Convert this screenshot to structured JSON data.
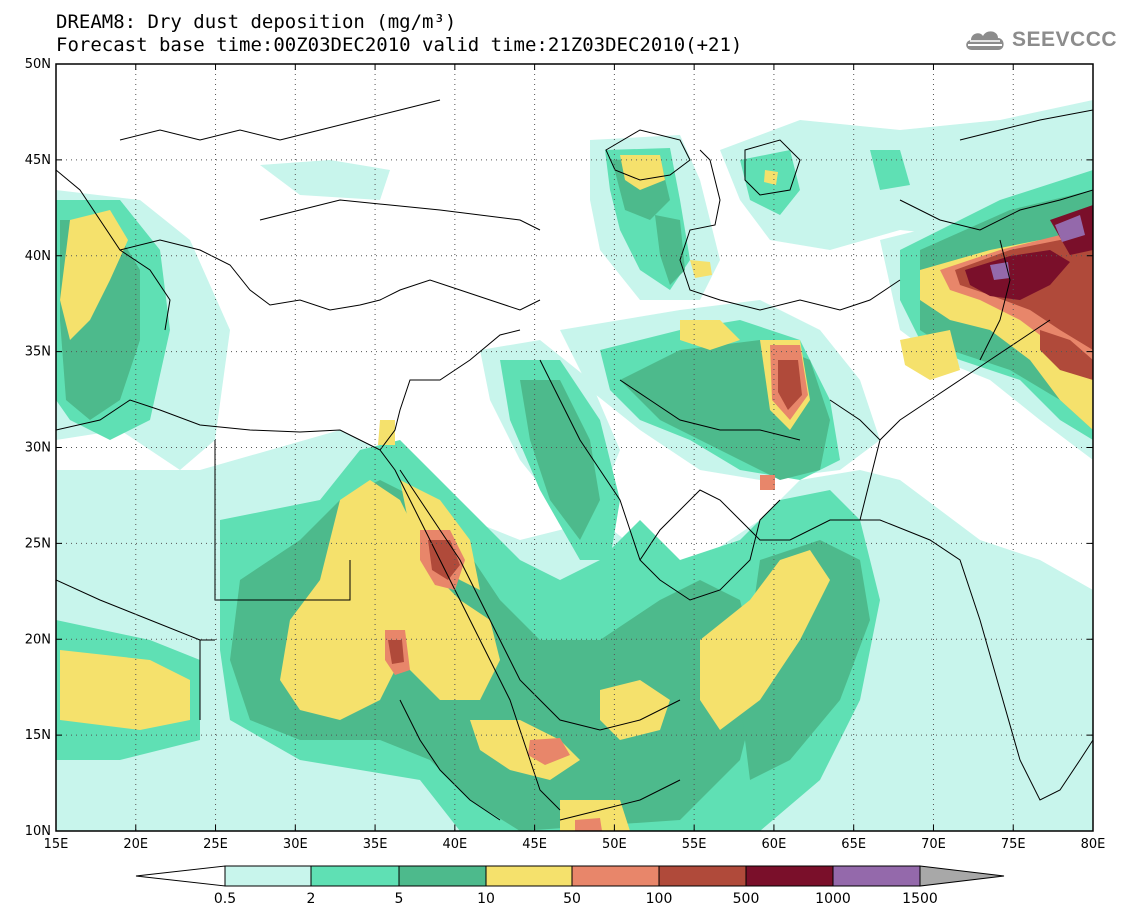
{
  "title": {
    "line1": "DREAM8: Dry dust deposition (mg/m³)",
    "line2": "Forecast base time:00Z03DEC2010 valid time:21Z03DEC2010(+21)"
  },
  "logo": {
    "text": "SEEVCCC",
    "icon": "cloud-icon"
  },
  "map": {
    "lat_range": [
      10,
      50
    ],
    "lon_range": [
      15,
      80
    ],
    "lat_ticks": [
      "10N",
      "15N",
      "20N",
      "25N",
      "30N",
      "35N",
      "40N",
      "45N",
      "50N"
    ],
    "lon_ticks": [
      "15E",
      "20E",
      "25E",
      "30E",
      "35E",
      "40E",
      "45E",
      "50E",
      "55E",
      "60E",
      "65E",
      "70E",
      "75E",
      "80E"
    ],
    "grid": "dotted"
  },
  "colorbar": {
    "labels": [
      "0.5",
      "2",
      "5",
      "10",
      "50",
      "100",
      "500",
      "1000",
      "1500"
    ],
    "colors": [
      "#c8f5ec",
      "#5fe0b4",
      "#4dba8c",
      "#f5e16c",
      "#e8866a",
      "#b04a3a",
      "#7a0f2a",
      "#9469ab",
      "#a8a8a8"
    ],
    "below_color": "#ffffff"
  }
}
